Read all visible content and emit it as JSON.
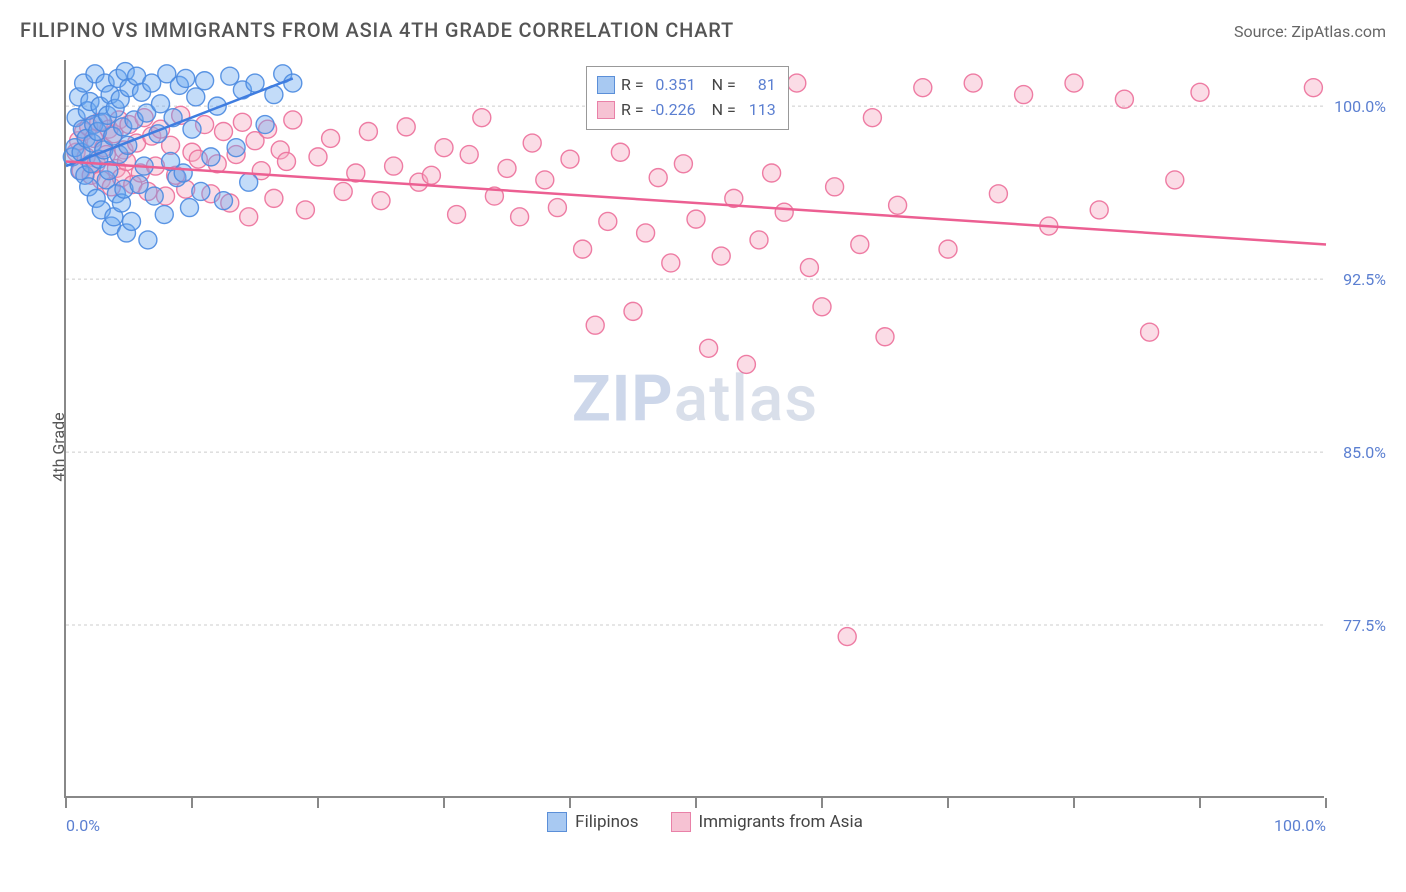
{
  "title": "FILIPINO VS IMMIGRANTS FROM ASIA 4TH GRADE CORRELATION CHART",
  "source": "Source: ZipAtlas.com",
  "y_axis_label": "4th Grade",
  "watermark": {
    "bold": "ZIP",
    "rest": "atlas"
  },
  "chart": {
    "type": "scatter",
    "background_color": "#ffffff",
    "grid_color": "#cccccc",
    "axis_color": "#888888",
    "xlim": [
      0,
      100
    ],
    "ylim": [
      70,
      102
    ],
    "x_ticks": [
      0,
      10,
      20,
      30,
      40,
      50,
      60,
      70,
      80,
      90,
      100
    ],
    "x_tick_labels": {
      "0": "0.0%",
      "100": "100.0%"
    },
    "y_ticks": [
      77.5,
      85.0,
      92.5,
      100.0
    ],
    "y_tick_labels": [
      "77.5%",
      "85.0%",
      "92.5%",
      "100.0%"
    ],
    "marker_radius": 9,
    "marker_opacity": 0.4,
    "marker_stroke_opacity": 0.9,
    "line_width": 2.5,
    "series": [
      {
        "key": "filipinos",
        "label": "Filipinos",
        "color": "#6aa8f0",
        "stroke": "#4a8ae0",
        "line_color": "#3f7de0",
        "R": "0.351",
        "N": "81",
        "trend": {
          "x1": 0,
          "y1": 97.4,
          "x2": 18,
          "y2": 101.2
        },
        "points": [
          [
            0.5,
            97.8
          ],
          [
            0.7,
            98.2
          ],
          [
            0.8,
            99.5
          ],
          [
            1.0,
            100.4
          ],
          [
            1.1,
            97.2
          ],
          [
            1.2,
            98.0
          ],
          [
            1.3,
            99.0
          ],
          [
            1.4,
            101.0
          ],
          [
            1.5,
            97.0
          ],
          [
            1.6,
            98.6
          ],
          [
            1.7,
            99.8
          ],
          [
            1.8,
            96.5
          ],
          [
            1.9,
            100.2
          ],
          [
            2.0,
            97.5
          ],
          [
            2.1,
            98.4
          ],
          [
            2.2,
            99.2
          ],
          [
            2.3,
            101.4
          ],
          [
            2.4,
            96.0
          ],
          [
            2.5,
            98.9
          ],
          [
            2.6,
            97.7
          ],
          [
            2.7,
            100.0
          ],
          [
            2.8,
            95.5
          ],
          [
            2.9,
            99.3
          ],
          [
            3.0,
            98.1
          ],
          [
            3.1,
            101.0
          ],
          [
            3.2,
            96.8
          ],
          [
            3.3,
            99.6
          ],
          [
            3.4,
            97.2
          ],
          [
            3.5,
            100.5
          ],
          [
            3.6,
            94.8
          ],
          [
            3.7,
            98.7
          ],
          [
            3.8,
            95.2
          ],
          [
            3.9,
            99.9
          ],
          [
            4.0,
            96.2
          ],
          [
            4.1,
            101.2
          ],
          [
            4.2,
            97.9
          ],
          [
            4.3,
            100.3
          ],
          [
            4.4,
            95.8
          ],
          [
            4.5,
            99.1
          ],
          [
            4.6,
            96.4
          ],
          [
            4.7,
            101.5
          ],
          [
            4.8,
            94.5
          ],
          [
            4.9,
            98.3
          ],
          [
            5.0,
            100.8
          ],
          [
            5.2,
            95.0
          ],
          [
            5.4,
            99.4
          ],
          [
            5.6,
            101.3
          ],
          [
            5.8,
            96.6
          ],
          [
            6.0,
            100.6
          ],
          [
            6.2,
            97.4
          ],
          [
            6.4,
            99.7
          ],
          [
            6.5,
            94.2
          ],
          [
            6.8,
            101.0
          ],
          [
            7.0,
            96.1
          ],
          [
            7.3,
            98.8
          ],
          [
            7.5,
            100.1
          ],
          [
            7.8,
            95.3
          ],
          [
            8.0,
            101.4
          ],
          [
            8.3,
            97.6
          ],
          [
            8.5,
            99.5
          ],
          [
            8.8,
            96.9
          ],
          [
            9.0,
            100.9
          ],
          [
            9.3,
            97.1
          ],
          [
            9.5,
            101.2
          ],
          [
            9.8,
            95.6
          ],
          [
            10.0,
            99.0
          ],
          [
            10.3,
            100.4
          ],
          [
            10.7,
            96.3
          ],
          [
            11.0,
            101.1
          ],
          [
            11.5,
            97.8
          ],
          [
            12.0,
            100.0
          ],
          [
            12.5,
            95.9
          ],
          [
            13.0,
            101.3
          ],
          [
            13.5,
            98.2
          ],
          [
            14.0,
            100.7
          ],
          [
            14.5,
            96.7
          ],
          [
            15.0,
            101.0
          ],
          [
            15.8,
            99.2
          ],
          [
            16.5,
            100.5
          ],
          [
            17.2,
            101.4
          ],
          [
            18.0,
            101.0
          ]
        ]
      },
      {
        "key": "immigrants",
        "label": "Immigrants from Asia",
        "color": "#f5a8c0",
        "stroke": "#ec6f9a",
        "line_color": "#ec5f92",
        "R": "-0.226",
        "N": "113",
        "trend": {
          "x1": 0,
          "y1": 97.6,
          "x2": 100,
          "y2": 94.0
        },
        "points": [
          [
            0.8,
            98.0
          ],
          [
            1.0,
            98.5
          ],
          [
            1.2,
            97.2
          ],
          [
            1.4,
            98.9
          ],
          [
            1.6,
            97.8
          ],
          [
            1.8,
            99.1
          ],
          [
            2.0,
            97.0
          ],
          [
            2.2,
            98.6
          ],
          [
            2.4,
            97.5
          ],
          [
            2.6,
            99.3
          ],
          [
            2.8,
            96.8
          ],
          [
            3.0,
            98.2
          ],
          [
            3.2,
            97.9
          ],
          [
            3.4,
            99.0
          ],
          [
            3.6,
            96.5
          ],
          [
            3.8,
            98.8
          ],
          [
            4.0,
            97.3
          ],
          [
            4.2,
            99.4
          ],
          [
            4.4,
            96.9
          ],
          [
            4.6,
            98.1
          ],
          [
            4.8,
            97.6
          ],
          [
            5.0,
            99.2
          ],
          [
            5.3,
            96.6
          ],
          [
            5.6,
            98.4
          ],
          [
            5.9,
            97.1
          ],
          [
            6.2,
            99.5
          ],
          [
            6.5,
            96.3
          ],
          [
            6.8,
            98.7
          ],
          [
            7.1,
            97.4
          ],
          [
            7.5,
            99.0
          ],
          [
            7.9,
            96.1
          ],
          [
            8.3,
            98.3
          ],
          [
            8.7,
            97.0
          ],
          [
            9.1,
            99.6
          ],
          [
            9.5,
            96.4
          ],
          [
            10.0,
            98.0
          ],
          [
            10.5,
            97.7
          ],
          [
            11.0,
            99.2
          ],
          [
            11.5,
            96.2
          ],
          [
            12.0,
            97.5
          ],
          [
            12.5,
            98.9
          ],
          [
            13.0,
            95.8
          ],
          [
            13.5,
            97.9
          ],
          [
            14.0,
            99.3
          ],
          [
            14.5,
            95.2
          ],
          [
            15.0,
            98.5
          ],
          [
            15.5,
            97.2
          ],
          [
            16.0,
            99.0
          ],
          [
            16.5,
            96.0
          ],
          [
            17.0,
            98.1
          ],
          [
            17.5,
            97.6
          ],
          [
            18.0,
            99.4
          ],
          [
            19.0,
            95.5
          ],
          [
            20.0,
            97.8
          ],
          [
            21.0,
            98.6
          ],
          [
            22.0,
            96.3
          ],
          [
            23.0,
            97.1
          ],
          [
            24.0,
            98.9
          ],
          [
            25.0,
            95.9
          ],
          [
            26.0,
            97.4
          ],
          [
            27.0,
            99.1
          ],
          [
            28.0,
            96.7
          ],
          [
            29.0,
            97.0
          ],
          [
            30.0,
            98.2
          ],
          [
            31.0,
            95.3
          ],
          [
            32.0,
            97.9
          ],
          [
            33.0,
            99.5
          ],
          [
            34.0,
            96.1
          ],
          [
            35.0,
            97.3
          ],
          [
            36.0,
            95.2
          ],
          [
            37.0,
            98.4
          ],
          [
            38.0,
            96.8
          ],
          [
            39.0,
            95.6
          ],
          [
            40.0,
            97.7
          ],
          [
            41.0,
            93.8
          ],
          [
            42.0,
            90.5
          ],
          [
            43.0,
            95.0
          ],
          [
            44.0,
            98.0
          ],
          [
            45.0,
            91.1
          ],
          [
            46.0,
            94.5
          ],
          [
            47.0,
            96.9
          ],
          [
            48.0,
            93.2
          ],
          [
            49.0,
            97.5
          ],
          [
            50.0,
            95.1
          ],
          [
            51.0,
            89.5
          ],
          [
            52.0,
            93.5
          ],
          [
            53.0,
            96.0
          ],
          [
            54.0,
            88.8
          ],
          [
            55.0,
            94.2
          ],
          [
            56.0,
            97.1
          ],
          [
            57.0,
            95.4
          ],
          [
            58.0,
            101.0
          ],
          [
            59.0,
            93.0
          ],
          [
            60.0,
            91.3
          ],
          [
            61.0,
            96.5
          ],
          [
            62.0,
            77.0
          ],
          [
            63.0,
            94.0
          ],
          [
            64.0,
            99.5
          ],
          [
            65.0,
            90.0
          ],
          [
            66.0,
            95.7
          ],
          [
            68.0,
            100.8
          ],
          [
            70.0,
            93.8
          ],
          [
            72.0,
            101.0
          ],
          [
            74.0,
            96.2
          ],
          [
            76.0,
            100.5
          ],
          [
            78.0,
            94.8
          ],
          [
            80.0,
            101.0
          ],
          [
            82.0,
            95.5
          ],
          [
            84.0,
            100.3
          ],
          [
            86.0,
            90.2
          ],
          [
            88.0,
            96.8
          ],
          [
            90.0,
            100.6
          ],
          [
            99.0,
            100.8
          ]
        ]
      }
    ]
  },
  "stats_box": {
    "rows": [
      {
        "swatch": "#a8c9f2",
        "border": "#5b8fd8",
        "R_label": "R =",
        "R_val": "0.351",
        "N_label": "N =",
        "N_val": "81"
      },
      {
        "swatch": "#f6c2d3",
        "border": "#e981a8",
        "R_label": "R =",
        "R_val": "-0.226",
        "N_label": "N =",
        "N_val": "113"
      }
    ],
    "label_color": "#444444",
    "value_color": "#5b7fd1"
  },
  "bottom_legend": [
    {
      "swatch": "#a8c9f2",
      "border": "#5b8fd8",
      "label": "Filipinos"
    },
    {
      "swatch": "#f6c2d3",
      "border": "#e981a8",
      "label": "Immigrants from Asia"
    }
  ]
}
